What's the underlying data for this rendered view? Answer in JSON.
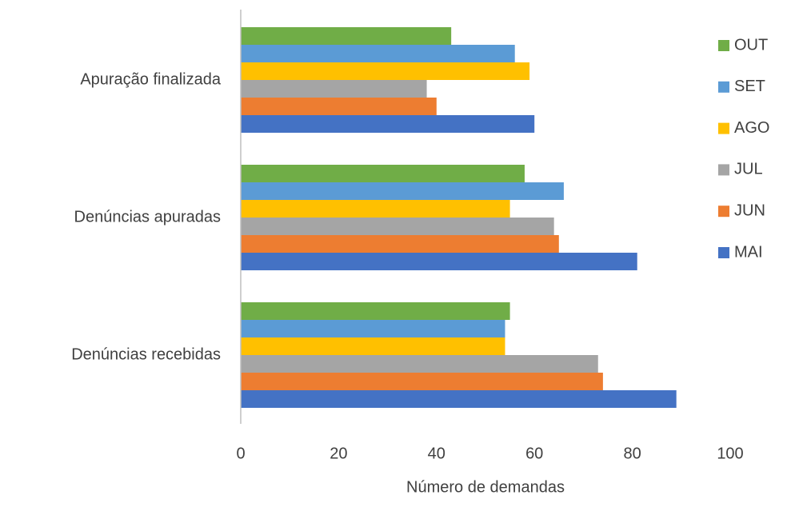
{
  "chart_data": {
    "type": "bar",
    "orientation": "horizontal",
    "x_label": "Número de demandas",
    "categories": [
      "Apuração finalizada",
      "Denúncias apuradas",
      "Denúncias recebidas"
    ],
    "series": [
      {
        "name": "MAI",
        "color": "#4472c4",
        "values": [
          60,
          81,
          89
        ]
      },
      {
        "name": "JUN",
        "color": "#ed7d31",
        "values": [
          40,
          65,
          74
        ]
      },
      {
        "name": "JUL",
        "color": "#a5a5a5",
        "values": [
          38,
          64,
          73
        ]
      },
      {
        "name": "AGO",
        "color": "#ffc000",
        "values": [
          59,
          55,
          54
        ]
      },
      {
        "name": "SET",
        "color": "#5b9bd5",
        "values": [
          56,
          66,
          54
        ]
      },
      {
        "name": "OUT",
        "color": "#70ad47",
        "values": [
          43,
          58,
          55
        ]
      }
    ],
    "xlim": [
      0,
      100
    ],
    "xticks": [
      0,
      20,
      40,
      60,
      80,
      100
    ],
    "grid": false,
    "legend": "right"
  }
}
